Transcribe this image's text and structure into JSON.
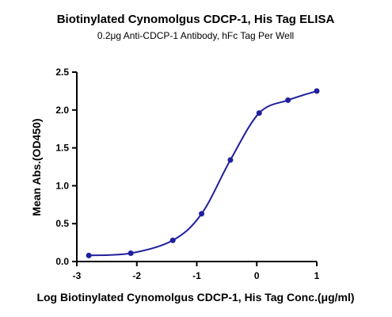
{
  "chart_data": {
    "type": "scatter",
    "title": "Biotinylated Cynomolgus CDCP-1, His Tag ELISA",
    "subtitle": "0.2μg Anti-CDCP-1 Antibody, hFc Tag Per Well",
    "xlabel": "Log Biotinylated Cynomolgus CDCP-1, His Tag Conc.(μg/ml)",
    "ylabel": "Mean Abs.(OD450)",
    "xlim": [
      -3,
      1
    ],
    "ylim": [
      0,
      2.5
    ],
    "xticks": [
      -3,
      -2,
      -1,
      0,
      1
    ],
    "yticks": [
      0.0,
      0.5,
      1.0,
      1.5,
      2.0,
      2.5
    ],
    "xtick_labels": [
      "-3",
      "-2",
      "-1",
      "0",
      "1"
    ],
    "ytick_labels": [
      "0.0",
      "0.5",
      "1.0",
      "1.5",
      "2.0",
      "2.5"
    ],
    "grid": false,
    "series": [
      {
        "x": [
          -2.8,
          -2.1,
          -1.4,
          -0.92,
          -0.44,
          0.04,
          0.52,
          1.0
        ],
        "y": [
          0.08,
          0.11,
          0.28,
          0.63,
          1.34,
          1.96,
          2.13,
          2.25
        ],
        "color": "#1f1f9f",
        "marker": "circle",
        "fit": "4PL sigmoidal curve"
      }
    ]
  }
}
